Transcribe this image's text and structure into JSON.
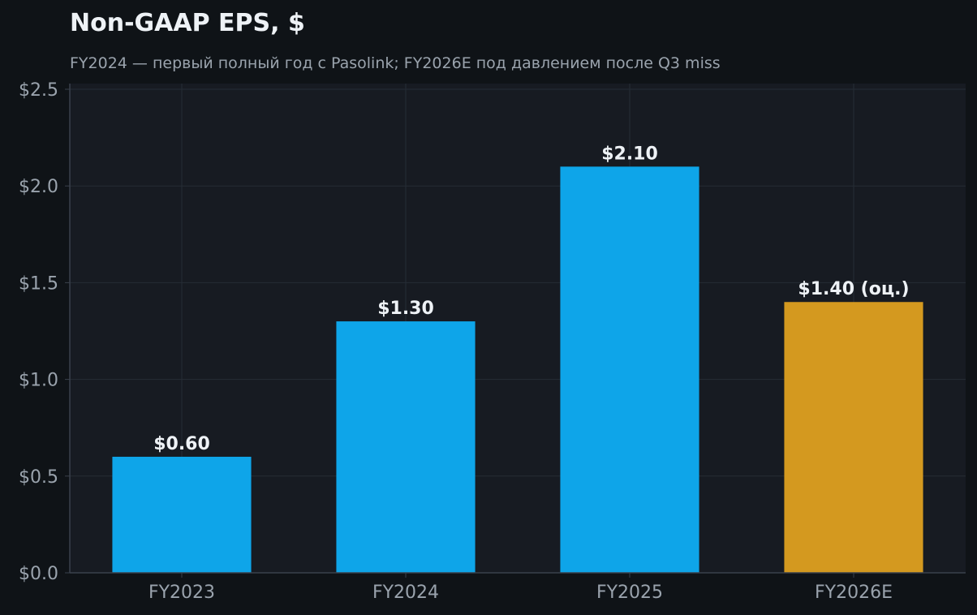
{
  "chart_data": {
    "type": "bar",
    "title": "Non-GAAP EPS, $",
    "subtitle": "FY2024 — первый полный год с Pasolink; FY2026E под давлением после Q3 miss",
    "categories": [
      "FY2023",
      "FY2024",
      "FY2025",
      "FY2026E"
    ],
    "values": [
      0.6,
      1.3,
      2.1,
      1.4
    ],
    "value_labels": [
      "$0.60",
      "$1.30",
      "$2.10",
      "$1.40 (оц.)"
    ],
    "bar_colors": [
      "#0ea5e9",
      "#0ea5e9",
      "#0ea5e9",
      "#d4991f"
    ],
    "ylim": [
      0,
      2.5
    ],
    "yticks": [
      0,
      0.5,
      1.0,
      1.5,
      2.0,
      2.5
    ],
    "ytick_labels": [
      "$0.0",
      "$0.5",
      "$1.0",
      "$1.5",
      "$2.0",
      "$2.5"
    ],
    "xlabel": "",
    "ylabel": "",
    "grid": true,
    "legend": "none"
  },
  "colors": {
    "background": "#0f1317",
    "plot_background": "#171b22",
    "grid": "#262c35",
    "axis": "#3a414c",
    "title": "#eef2f6",
    "subtitle": "#9aa3ad",
    "tick_label": "#9aa3ad",
    "value_label": "#eef2f6"
  }
}
